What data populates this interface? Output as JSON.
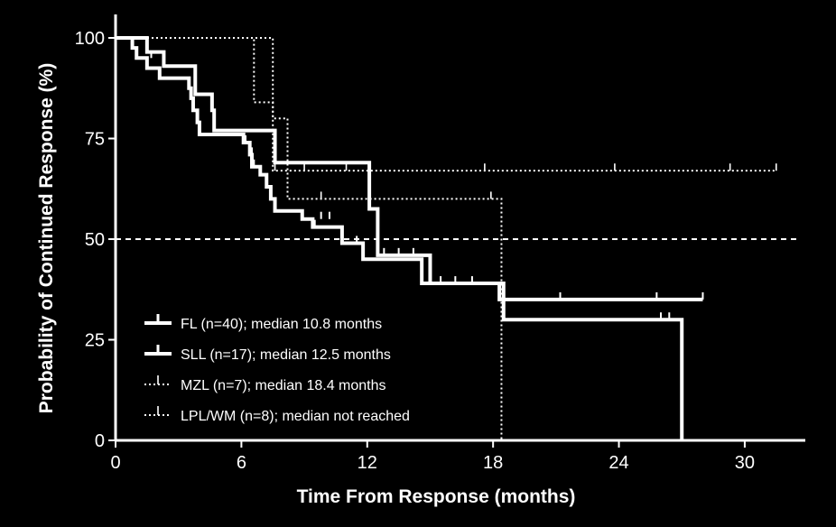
{
  "chart_data": {
    "type": "line",
    "xlabel": "Time From Response (months)",
    "ylabel": "Probability of Continued Response (%)",
    "xlim": [
      0,
      32.5
    ],
    "ylim": [
      0,
      100
    ],
    "xticks": [
      0,
      6,
      12,
      18,
      24,
      30
    ],
    "yticks": [
      0,
      25,
      50,
      75,
      100
    ],
    "reference_line": {
      "y": 50,
      "style": "dashed"
    },
    "legend_position": "lower-left",
    "colors": {
      "background": "#000000",
      "foreground": "#ffffff"
    },
    "series": [
      {
        "name": "FL (n=40); median 10.8 months",
        "line_style": "solid-thick",
        "steps": [
          [
            0,
            100
          ],
          [
            0.8,
            97.5
          ],
          [
            1.0,
            95
          ],
          [
            1.5,
            92.5
          ],
          [
            2.1,
            90
          ],
          [
            3.5,
            87.5
          ],
          [
            3.6,
            85
          ],
          [
            3.7,
            82
          ],
          [
            3.9,
            79
          ],
          [
            4.0,
            76
          ],
          [
            6.1,
            74
          ],
          [
            6.4,
            71
          ],
          [
            6.5,
            68
          ],
          [
            6.9,
            66
          ],
          [
            7.2,
            63
          ],
          [
            7.4,
            60
          ],
          [
            7.6,
            57
          ],
          [
            8.9,
            55
          ],
          [
            9.4,
            53
          ],
          [
            10.8,
            49
          ],
          [
            11.8,
            45
          ],
          [
            14.6,
            39
          ],
          [
            18.3,
            35
          ],
          [
            28.0,
            35
          ]
        ],
        "censored": [
          [
            1.7,
            95
          ],
          [
            6.2,
            74
          ],
          [
            6.5,
            71
          ],
          [
            6.6,
            68
          ],
          [
            9.5,
            53
          ],
          [
            9.8,
            55
          ],
          [
            10.2,
            55
          ],
          [
            11.5,
            49
          ],
          [
            12.8,
            46
          ],
          [
            13.5,
            46
          ],
          [
            14.2,
            46
          ],
          [
            15.5,
            39
          ],
          [
            16.2,
            39
          ],
          [
            17.0,
            39
          ],
          [
            21.2,
            35
          ],
          [
            25.8,
            35
          ],
          [
            28.0,
            35
          ]
        ]
      },
      {
        "name": "SLL (n=17); median 12.5 months",
        "line_style": "solid-thick",
        "steps": [
          [
            0,
            100
          ],
          [
            1.5,
            96.5
          ],
          [
            2.3,
            93
          ],
          [
            3.8,
            86
          ],
          [
            4.6,
            82
          ],
          [
            4.7,
            77
          ],
          [
            7.5,
            77
          ],
          [
            7.6,
            69
          ],
          [
            12.0,
            69
          ],
          [
            12.1,
            57.5
          ],
          [
            12.5,
            46
          ],
          [
            14.8,
            46
          ],
          [
            15.0,
            39
          ],
          [
            18.4,
            39
          ],
          [
            18.5,
            30
          ],
          [
            27.0,
            30
          ],
          [
            27.0,
            0
          ]
        ],
        "censored": [
          [
            26.0,
            30
          ],
          [
            26.4,
            30
          ]
        ]
      },
      {
        "name": "MZL (n=7); median 18.4 months",
        "line_style": "dotted",
        "steps": [
          [
            0,
            100
          ],
          [
            6.5,
            100
          ],
          [
            6.6,
            84
          ],
          [
            7.4,
            84
          ],
          [
            7.5,
            80
          ],
          [
            8.1,
            80
          ],
          [
            8.2,
            60
          ],
          [
            18.4,
            60
          ],
          [
            18.4,
            0
          ]
        ],
        "censored": [
          [
            9.8,
            60
          ],
          [
            17.9,
            60
          ]
        ]
      },
      {
        "name": "LPL/WM (n=8); median not reached",
        "line_style": "dotted",
        "steps": [
          [
            0,
            100
          ],
          [
            7.4,
            100
          ],
          [
            7.5,
            67
          ],
          [
            31.5,
            67
          ]
        ],
        "censored": [
          [
            7.6,
            67
          ],
          [
            9.0,
            67
          ],
          [
            11.0,
            67
          ],
          [
            17.6,
            67
          ],
          [
            23.8,
            67
          ],
          [
            29.3,
            67
          ],
          [
            31.5,
            67
          ]
        ]
      }
    ]
  }
}
